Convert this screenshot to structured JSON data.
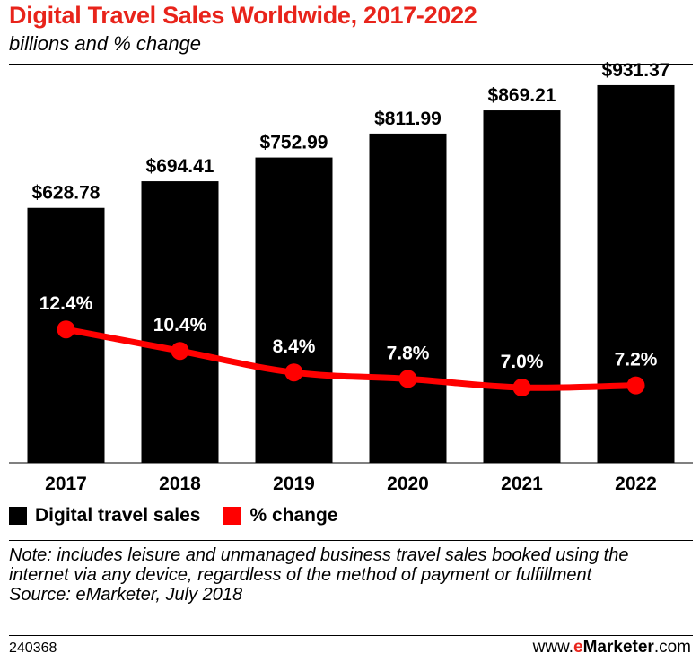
{
  "chart_data": {
    "type": "bar",
    "title": "Digital Travel Sales Worldwide, 2017-2022",
    "subtitle": "billions and % change",
    "categories": [
      "2017",
      "2018",
      "2019",
      "2020",
      "2021",
      "2022"
    ],
    "series": [
      {
        "name": "Digital travel sales",
        "type": "bar",
        "color": "#000000",
        "values": [
          628.78,
          694.41,
          752.99,
          811.99,
          869.21,
          931.37
        ],
        "labels": [
          "$628.78",
          "$694.41",
          "$752.99",
          "$811.99",
          "$869.21",
          "$931.37"
        ]
      },
      {
        "name": "% change",
        "type": "line",
        "color": "#ff0000",
        "values": [
          12.4,
          10.4,
          8.4,
          7.8,
          7.0,
          7.2
        ],
        "labels": [
          "12.4%",
          "10.4%",
          "8.4%",
          "7.8%",
          "7.0%",
          "7.2%"
        ]
      }
    ],
    "xlabel": "",
    "ylabel": "",
    "ylim": [
      0,
      960
    ],
    "ylim_secondary": [
      0,
      20
    ],
    "grid": false,
    "legend_position": "bottom-left"
  },
  "note": "Note: includes leisure and unmanaged business travel sales booked using the internet via any device, regardless of the method of payment or fulfillment",
  "source": "Source: eMarketer, July 2018",
  "footer": {
    "chart_id": "240368",
    "brand_prefix": "www.",
    "brand_e": "e",
    "brand_name": "Marketer",
    "brand_suffix": ".com"
  }
}
